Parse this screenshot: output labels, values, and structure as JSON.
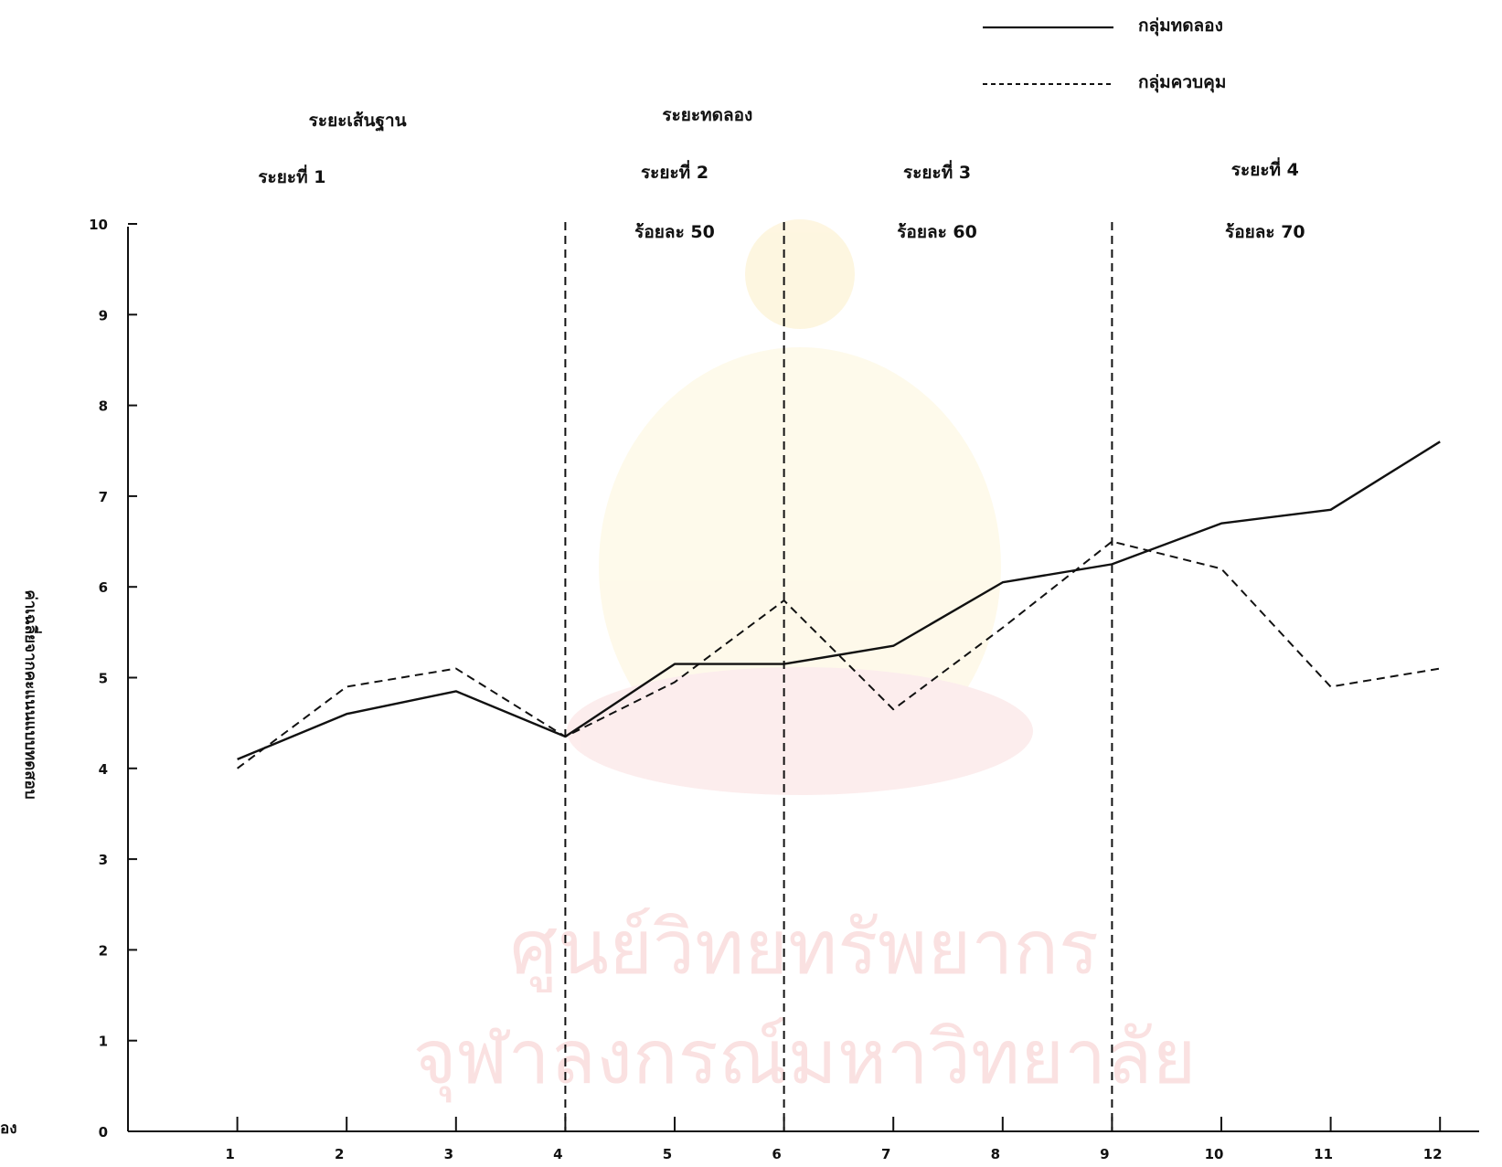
{
  "chart_data": {
    "type": "line",
    "ylabel": "ค่าเฉลี่ยจากคะแนนแบบทดสอบ",
    "xlabel_fragment": "อง",
    "x": [
      1,
      2,
      3,
      4,
      5,
      6,
      7,
      8,
      9,
      10,
      11,
      12
    ],
    "x_tick_labels": [
      "1",
      "2",
      "3",
      "4",
      "5",
      "6",
      "7",
      "8",
      "9",
      "10",
      "11",
      "12"
    ],
    "y_tick_labels": [
      "0",
      "1",
      "2",
      "3",
      "4",
      "5",
      "6",
      "7",
      "8",
      "9",
      "10"
    ],
    "ylim": [
      0,
      10
    ],
    "xlim": [
      0,
      12
    ],
    "grid": false,
    "series": [
      {
        "name": "กลุ่มทดลอง",
        "style": "solid",
        "values": [
          4.1,
          4.6,
          4.85,
          4.35,
          5.15,
          5.15,
          5.35,
          6.05,
          6.25,
          6.7,
          6.85,
          7.6
        ]
      },
      {
        "name": "กลุ่มควบคุม",
        "style": "dashed",
        "values": [
          4.0,
          4.9,
          5.1,
          4.35,
          4.95,
          5.85,
          4.65,
          5.55,
          6.5,
          6.2,
          4.9,
          5.1
        ]
      }
    ],
    "phase_dividers": [
      4,
      6,
      9
    ],
    "phase_header_top": [
      {
        "text": "ระยะเส้นฐาน",
        "x_center": 2.1
      },
      {
        "text": "ระยะทดลอง",
        "x_center": 5.3
      }
    ],
    "phases": [
      {
        "label": "ระยะที่ 1",
        "criterion": "",
        "x_center": 1.5
      },
      {
        "label": "ระยะที่ 2",
        "criterion": "ร้อยละ 50",
        "x_center": 5.0
      },
      {
        "label": "ระยะที่ 3",
        "criterion": "ร้อยละ 60",
        "x_center": 7.4
      },
      {
        "label": "ระยะที่ 4",
        "criterion": "ร้อยละ 70",
        "x_center": 10.4
      }
    ],
    "legend_position": "top-right",
    "watermark": [
      "ศูนย์วิทยทรัพยากร",
      "จุฬาลงกรณ์มหาวิทยาลัย"
    ]
  }
}
